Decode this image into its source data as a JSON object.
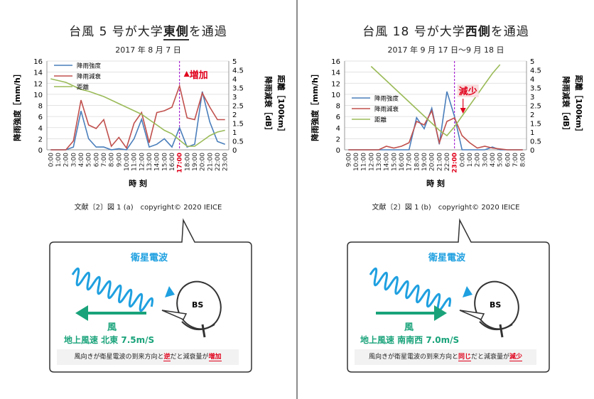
{
  "left": {
    "title_prefix": "台風",
    "title_num": "5 号が大学",
    "title_em": "東側",
    "title_suffix": "を通過",
    "date": "2017 年 8 月 7 日",
    "caption": "文献〔2〕図 1 (a)　copyright© 2020 IEICE",
    "callout": "増加",
    "signal_label": "衛星電波",
    "wind_label": "風",
    "wind_speed": "地上風速 北東 7.5m/S",
    "note_pre": "風向きが衛星電波の到来方向と",
    "note_em1": "逆",
    "note_mid": "だと減衰量が",
    "note_em2": "増加",
    "bs_label": "BS"
  },
  "right": {
    "title_prefix": "台風",
    "title_num": "18 号が大学",
    "title_em": "西側",
    "title_suffix": "を通過",
    "date": "2017 年 9 月 17 日〜9 月 18 日",
    "caption": "文献〔2〕図 1 (b)　copyright© 2020 IEICE",
    "callout": "減少",
    "signal_label": "衛星電波",
    "wind_label": "風",
    "wind_speed": "地上風速 南南西 7.0m/S",
    "note_pre": "風向きが衛星電波の到来方向と",
    "note_em1": "同じ",
    "note_mid": "だと減衰量が",
    "note_em2": "減少",
    "bs_label": "BS"
  },
  "colors": {
    "rain": "#4a7ebb",
    "atten": "#c0504d",
    "dist": "#9bbb59",
    "accent": "#e0001b",
    "signal": "#1fa0e0",
    "wind": "#1aa37a",
    "marker": "#9900cc"
  },
  "chart_data": [
    {
      "type": "line",
      "title": "",
      "xlabel": "時 刻",
      "ylabel": "降雨強度［mm/h］",
      "y2label_a": "降雨減衰［dB］",
      "y2label_b": "距離［100km］",
      "ylim": [
        0,
        16
      ],
      "y2lim": [
        0,
        5
      ],
      "yticks": [
        "0",
        "2",
        "4",
        "6",
        "8",
        "10",
        "12",
        "14",
        "16"
      ],
      "y2ticks": [
        "0",
        "0.5",
        "1",
        "1.5",
        "2",
        "2.5",
        "3",
        "3.5",
        "4",
        "4.5",
        "5"
      ],
      "x": [
        "0:00",
        "1:00",
        "2:00",
        "3:00",
        "4:00",
        "5:00",
        "6:00",
        "7:00",
        "8:00",
        "9:00",
        "10:00",
        "11:00",
        "12:00",
        "13:00",
        "14:00",
        "15:00",
        "16:00",
        "17:00",
        "18:00",
        "19:00",
        "20:00",
        "21:00",
        "22:00",
        "23:00"
      ],
      "highlight_x": "17:00",
      "legend": [
        "降雨強度",
        "降雨減衰",
        "距離"
      ],
      "series": [
        {
          "name": "降雨強度",
          "axis": "left",
          "values": [
            0,
            0,
            0,
            0.5,
            7,
            2,
            0.5,
            0.5,
            0,
            0.2,
            0,
            2,
            5.5,
            0.5,
            1,
            2,
            0.5,
            4,
            0.5,
            1,
            10.5,
            5,
            1.5,
            1
          ]
        },
        {
          "name": "降雨減衰",
          "axis": "right",
          "values": [
            0,
            0,
            0,
            0.5,
            2.8,
            1.4,
            1.2,
            1.7,
            0.2,
            0.7,
            0.1,
            1.5,
            2.1,
            0.4,
            2.1,
            2.2,
            2.4,
            3.6,
            1.8,
            1.7,
            3.2,
            2.4,
            1.7,
            1.7
          ]
        },
        {
          "name": "距離",
          "axis": "right",
          "values": [
            4,
            3.9,
            3.8,
            3.6,
            3.4,
            3.3,
            3.15,
            3,
            2.8,
            2.6,
            2.4,
            2.2,
            2.0,
            1.7,
            1.4,
            1.1,
            0.9,
            0.55,
            0.2,
            0.2,
            0.5,
            0.8,
            1.0,
            1.1
          ]
        }
      ]
    },
    {
      "type": "line",
      "title": "",
      "xlabel": "時 刻",
      "ylabel": "降雨強度［mm/h］",
      "y2label_a": "降雨減衰［dB］",
      "y2label_b": "距離［100km］",
      "ylim": [
        0,
        16
      ],
      "y2lim": [
        0,
        5
      ],
      "yticks": [
        "0",
        "2",
        "4",
        "6",
        "8",
        "10",
        "12",
        "14",
        "16"
      ],
      "y2ticks": [
        "0",
        "0.5",
        "1",
        "1.5",
        "2",
        "2.5",
        "3",
        "3.5",
        "4",
        "4.5",
        "5"
      ],
      "x": [
        "9:00",
        "10:00",
        "11:00",
        "12:00",
        "13:00",
        "14:00",
        "15:00",
        "16:00",
        "17:00",
        "18:00",
        "19:00",
        "20:00",
        "21:00",
        "22:00",
        "23:00",
        "0:00",
        "1:00",
        "2:00",
        "3:00",
        "4:00",
        "5:00",
        "6:00",
        "7:00",
        "8:00"
      ],
      "highlight_x": "23:00",
      "legend": [
        "降雨強度",
        "降雨減衰",
        "距離"
      ],
      "series": [
        {
          "name": "降雨強度",
          "axis": "left",
          "values": [
            0,
            0,
            0,
            0,
            0,
            0,
            0,
            0,
            0,
            5.8,
            3.8,
            7.5,
            1,
            10.5,
            6,
            0,
            0,
            0,
            0,
            0.5,
            0,
            0,
            0,
            0
          ]
        },
        {
          "name": "降雨減衰",
          "axis": "right",
          "values": [
            0,
            0,
            0,
            0,
            0,
            0.2,
            0.1,
            0.2,
            0.4,
            1.6,
            1.4,
            2.2,
            0.4,
            1.6,
            1.8,
            0.8,
            0.4,
            0.1,
            0.2,
            0.1,
            0.05,
            0,
            0,
            0
          ]
        },
        {
          "name": "距離",
          "axis": "right",
          "values": [
            null,
            null,
            null,
            4.7,
            4.3,
            3.9,
            3.5,
            3.1,
            2.7,
            2.3,
            1.9,
            1.5,
            1.1,
            0.8,
            1.3,
            1.9,
            2.5,
            3.1,
            3.7,
            4.3,
            4.8,
            null,
            null,
            null
          ]
        }
      ]
    }
  ]
}
